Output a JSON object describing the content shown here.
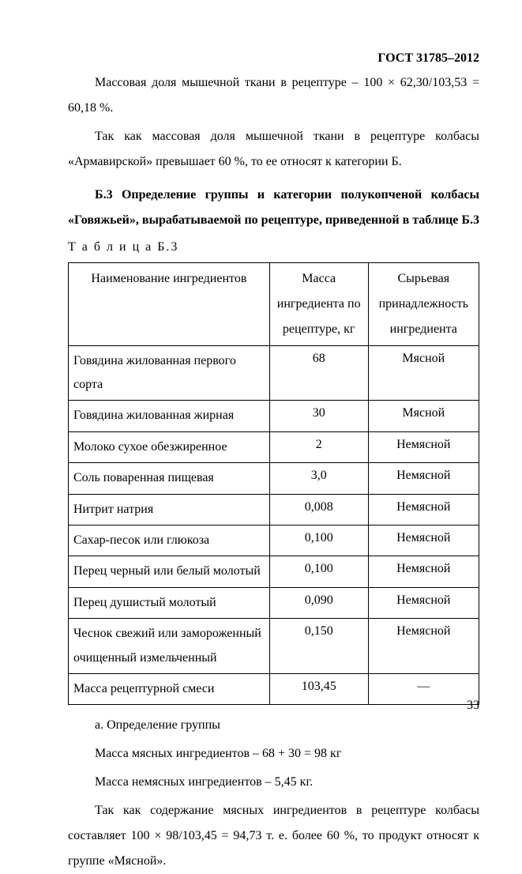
{
  "gost_header": "ГОСТ 31785–2012",
  "para1": "Массовая доля мышечной ткани в рецептуре – 100 × 62,30/103,53 = 60,18 %.",
  "para2": "Так как массовая доля мышечной ткани в рецептуре колбасы «Армавирской» превышает 60 %, то ее относят к категории Б.",
  "section_title": "Б.3 Определение группы и категории полукопченой колбасы «Говяжьей», вырабатываемой по рецептуре, приведенной в таблице Б.3",
  "table_label": "Т а б л и ц а   Б.3",
  "table": {
    "headers": {
      "name": "Наименование ингредиентов",
      "mass": "Масса ингредиента по рецептуре, кг",
      "src": "Сырьевая принадлежность ингредиента"
    },
    "rows": [
      {
        "name": "Говядина жилованная первого сорта",
        "mass": "68",
        "src": "Мясной"
      },
      {
        "name": "Говядина жилованная жирная",
        "mass": "30",
        "src": "Мясной"
      },
      {
        "name": "Молоко сухое обезжиренное",
        "mass": "2",
        "src": "Немясной"
      },
      {
        "name": "Соль поваренная пищевая",
        "mass": "3,0",
        "src": "Немясной"
      },
      {
        "name": "Нитрит натрия",
        "mass": "0,008",
        "src": "Немясной"
      },
      {
        "name": "Сахар-песок или глюкоза",
        "mass": "0,100",
        "src": "Немясной"
      },
      {
        "name": "Перец черный или белый молотый",
        "mass": "0,100",
        "src": "Немясной"
      },
      {
        "name": "Перец душистый молотый",
        "mass": "0,090",
        "src": "Немясной"
      },
      {
        "name": "Чеснок свежий или замороженный очищенный измельченный",
        "mass": "0,150",
        "src": "Немясной"
      }
    ],
    "total": {
      "name": "Масса рецептурной смеси",
      "mass": "103,45",
      "src": "—"
    }
  },
  "after": {
    "a_label": "а. Определение группы",
    "mass_meat": "Масса мясных ингредиентов – 68 + 30 = 98 кг",
    "mass_nonmeat": "Масса немясных ингредиентов – 5,45 кг.",
    "conclusion": "Так как содержание мясных ингредиентов в рецептуре колбасы составляет 100 × 98/103,45 = 94,73 т. е. более 60 %, то продукт относят к группе «Мясной»."
  },
  "page_number": "33",
  "style": {
    "font_family": "Times New Roman",
    "base_fontsize_pt": 12,
    "text_color": "#000000",
    "background_color": "#ffffff",
    "table_border_color": "#000000",
    "column_widths_pct": [
      49,
      24,
      27
    ]
  }
}
